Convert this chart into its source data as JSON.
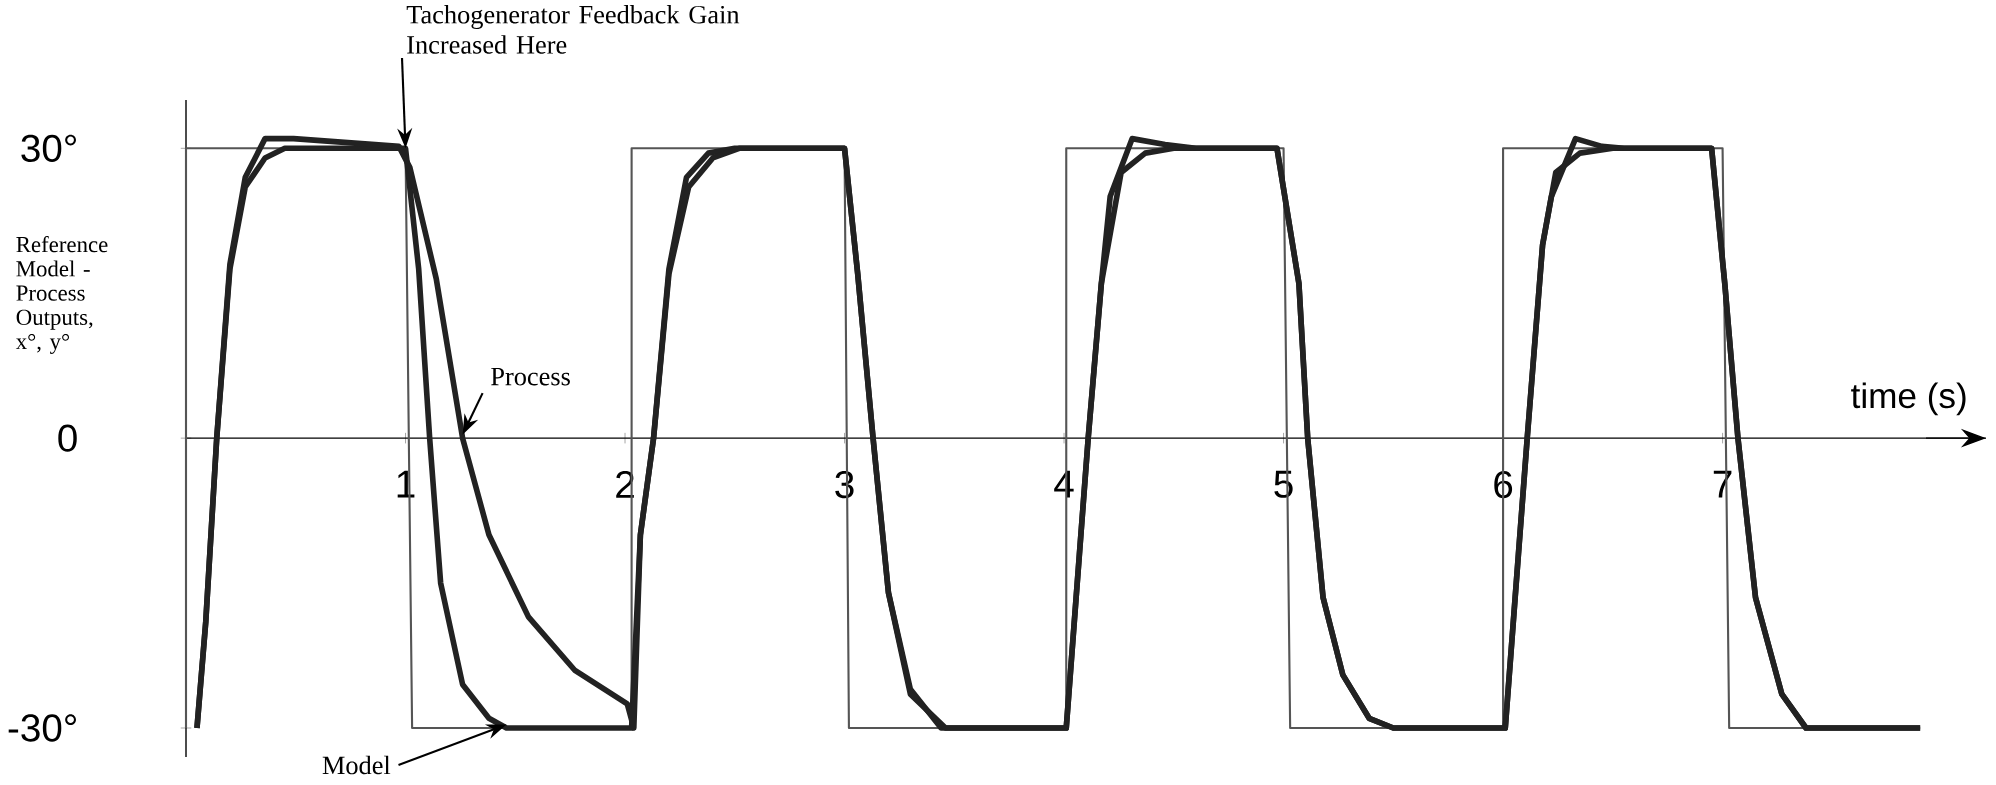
{
  "chart_data": {
    "type": "line",
    "xlabel": "time (s)",
    "ylabel": "Reference Model - Process Outputs, x°, y°",
    "xlim": [
      0,
      8.2
    ],
    "ylim": [
      -33,
      35
    ],
    "xticks": [
      1,
      2,
      3,
      4,
      5,
      6,
      7
    ],
    "yticks": [
      {
        "value": -30,
        "label": "-30°"
      },
      0,
      {
        "value": 30,
        "label": "30°"
      }
    ],
    "annotations": [
      "Tachogenerator Feedback Gain Increased Here"
    ],
    "series": [
      {
        "color": "#555555",
        "x": [
          0,
          0,
          1,
          1.03,
          2.03,
          2.03,
          3,
          3.02,
          4.01,
          4.01,
          5,
          5.03,
          6,
          6,
          7,
          7.03,
          7.9
        ],
        "values": [
          -30,
          30,
          30,
          -30,
          -30,
          30,
          30,
          -30,
          -30,
          30,
          30,
          -30,
          -30,
          30,
          30,
          -30,
          -30
        ]
      },
      {
        "name": "Model",
        "color": "#222222",
        "x": [
          0.05,
          0.09,
          0.14,
          0.2,
          0.27,
          0.36,
          0.45,
          1.0,
          1.06,
          1.11,
          1.16,
          1.26,
          1.38,
          1.46,
          2.03,
          2.07,
          2.13,
          2.2,
          2.28,
          2.38,
          2.5,
          3.0,
          3.06,
          3.13,
          3.2,
          3.3,
          3.44,
          4.01,
          4.07,
          4.11,
          4.17,
          4.26,
          4.37,
          4.5,
          4.97,
          5.07,
          5.11,
          5.18,
          5.27,
          5.39,
          5.5,
          6.01,
          6.07,
          6.11,
          6.18,
          6.24,
          6.35,
          6.5,
          6.95,
          7.01,
          7.07,
          7.15,
          7.27,
          7.38,
          7.9
        ],
        "values": [
          -30,
          -19,
          0,
          17.5,
          26,
          29,
          30,
          30,
          17.5,
          0,
          -15,
          -25.5,
          -29,
          -30,
          -30,
          -10,
          0,
          17.5,
          27,
          29.5,
          30,
          30,
          17,
          0,
          -16,
          -26,
          -30,
          -30,
          -12,
          0,
          16,
          27.5,
          29.5,
          30,
          30,
          16,
          0,
          -16.5,
          -24.5,
          -29,
          -30,
          -30,
          -12,
          0,
          20,
          27.5,
          29.5,
          30,
          30,
          16,
          0,
          -16.5,
          -26.5,
          -30,
          -30
        ]
      },
      {
        "name": "Process",
        "color": "#222222",
        "x": [
          0.05,
          0.09,
          0.14,
          0.2,
          0.27,
          0.36,
          0.49,
          0.97,
          1.02,
          1.14,
          1.26,
          1.38,
          1.56,
          1.77,
          2.01,
          2.04,
          2.07,
          2.13,
          2.2,
          2.29,
          2.4,
          2.52,
          3.0,
          3.06,
          3.13,
          3.2,
          3.3,
          3.46,
          4.01,
          4.07,
          4.11,
          4.17,
          4.21,
          4.31,
          4.46,
          4.6,
          4.97,
          5.07,
          5.11,
          5.18,
          5.27,
          5.39,
          5.5,
          6.01,
          6.07,
          6.11,
          6.18,
          6.22,
          6.33,
          6.45,
          6.55,
          6.95,
          7.01,
          7.07,
          7.15,
          7.27,
          7.38,
          7.9
        ],
        "values": [
          -30,
          -19,
          0,
          18,
          27,
          31,
          31,
          30.2,
          28,
          16.5,
          0,
          -10,
          -18.5,
          -24,
          -27.5,
          -30,
          -10,
          0,
          17,
          26,
          29,
          30,
          30,
          17,
          0,
          -16,
          -26.5,
          -30,
          -30,
          -12,
          0,
          16,
          25,
          31,
          30.4,
          30,
          30,
          16,
          0,
          -16.5,
          -24.5,
          -29,
          -30,
          -30,
          -12,
          0,
          20,
          25,
          31,
          30.2,
          30,
          30,
          16,
          0,
          -16.5,
          -26.5,
          -30,
          -30
        ]
      }
    ]
  }
}
